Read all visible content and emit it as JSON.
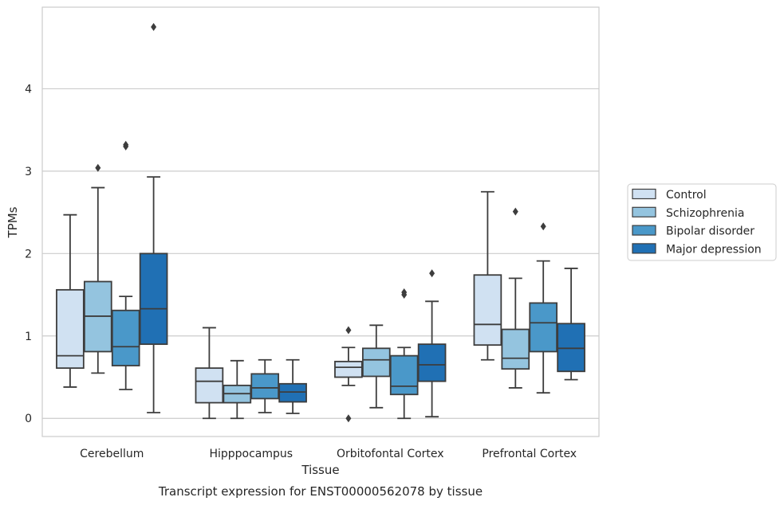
{
  "chart_data": {
    "type": "box",
    "caption": "Transcript expression for ENST00000562078 by tissue",
    "xlabel": "Tissue",
    "ylabel": "TPMs",
    "ylim": [
      -0.22,
      4.99
    ],
    "yticks": [
      0,
      1,
      2,
      3,
      4
    ],
    "grid": true,
    "legend_position": "right",
    "categories": [
      "Cerebellum",
      "Hipppocampus",
      "Orbitofontal Cortex",
      "Prefrontal Cortex"
    ],
    "series": [
      {
        "name": "Control",
        "color": "#d0e1f2",
        "boxes": [
          {
            "whislo": 0.38,
            "q1": 0.61,
            "med": 0.76,
            "q3": 1.56,
            "whishi": 2.47,
            "fliers": []
          },
          {
            "whislo": 0.0,
            "q1": 0.19,
            "med": 0.45,
            "q3": 0.61,
            "whishi": 1.1,
            "fliers": []
          },
          {
            "whislo": 0.4,
            "q1": 0.5,
            "med": 0.62,
            "q3": 0.69,
            "whishi": 0.86,
            "fliers": [
              1.07,
              0.0
            ]
          },
          {
            "whislo": 0.71,
            "q1": 0.89,
            "med": 1.14,
            "q3": 1.74,
            "whishi": 2.75,
            "fliers": []
          }
        ]
      },
      {
        "name": "Schizophrenia",
        "color": "#94c4df",
        "boxes": [
          {
            "whislo": 0.55,
            "q1": 0.81,
            "med": 1.24,
            "q3": 1.66,
            "whishi": 2.8,
            "fliers": [
              3.04
            ]
          },
          {
            "whislo": 0.0,
            "q1": 0.19,
            "med": 0.3,
            "q3": 0.4,
            "whishi": 0.7,
            "fliers": []
          },
          {
            "whislo": 0.13,
            "q1": 0.51,
            "med": 0.71,
            "q3": 0.85,
            "whishi": 1.13,
            "fliers": []
          },
          {
            "whislo": 0.37,
            "q1": 0.6,
            "med": 0.73,
            "q3": 1.08,
            "whishi": 1.7,
            "fliers": [
              2.51
            ]
          }
        ]
      },
      {
        "name": "Bipolar disorder",
        "color": "#4a98c9",
        "boxes": [
          {
            "whislo": 0.35,
            "q1": 0.64,
            "med": 0.87,
            "q3": 1.31,
            "whishi": 1.48,
            "fliers": [
              3.32,
              3.3
            ]
          },
          {
            "whislo": 0.07,
            "q1": 0.24,
            "med": 0.37,
            "q3": 0.54,
            "whishi": 0.71,
            "fliers": []
          },
          {
            "whislo": 0.0,
            "q1": 0.29,
            "med": 0.39,
            "q3": 0.76,
            "whishi": 0.86,
            "fliers": [
              1.53,
              1.5
            ]
          },
          {
            "whislo": 0.31,
            "q1": 0.81,
            "med": 1.16,
            "q3": 1.4,
            "whishi": 1.91,
            "fliers": [
              2.33
            ]
          }
        ]
      },
      {
        "name": "Major depression",
        "color": "#2070b4",
        "boxes": [
          {
            "whislo": 0.07,
            "q1": 0.9,
            "med": 1.33,
            "q3": 2.0,
            "whishi": 2.93,
            "fliers": [
              4.75
            ]
          },
          {
            "whislo": 0.06,
            "q1": 0.2,
            "med": 0.32,
            "q3": 0.42,
            "whishi": 0.71,
            "fliers": []
          },
          {
            "whislo": 0.02,
            "q1": 0.45,
            "med": 0.65,
            "q3": 0.9,
            "whishi": 1.42,
            "fliers": [
              1.76
            ]
          },
          {
            "whislo": 0.47,
            "q1": 0.57,
            "med": 0.85,
            "q3": 1.15,
            "whishi": 1.82,
            "fliers": []
          }
        ]
      }
    ]
  }
}
